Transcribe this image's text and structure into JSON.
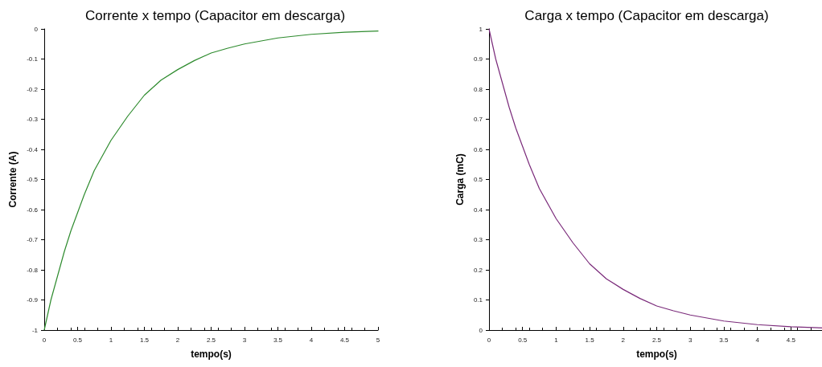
{
  "chart_data": [
    {
      "type": "line",
      "title": "Corrente x tempo (Capacitor em descarga)",
      "xlabel": "tempo(s)",
      "ylabel": "Corrente (A)",
      "x": [
        0,
        0.05,
        0.1,
        0.2,
        0.3,
        0.4,
        0.5,
        0.6,
        0.75,
        0.9,
        1,
        1.25,
        1.5,
        1.75,
        2,
        2.25,
        2.5,
        2.75,
        3,
        3.5,
        4,
        4.5,
        5
      ],
      "series": [
        {
          "color": "#2e8b2e",
          "values": [
            -1,
            -0.95,
            -0.9,
            -0.82,
            -0.74,
            -0.67,
            -0.61,
            -0.55,
            -0.47,
            -0.41,
            -0.37,
            -0.29,
            -0.22,
            -0.17,
            -0.135,
            -0.105,
            -0.08,
            -0.064,
            -0.05,
            -0.03,
            -0.018,
            -0.011,
            -0.007
          ]
        }
      ],
      "xlim": [
        0,
        5
      ],
      "xticks": [
        0,
        0.5,
        1,
        1.5,
        2,
        2.5,
        3,
        3.5,
        4,
        4.5,
        5
      ],
      "ylim": [
        -1,
        0
      ],
      "yticks": [
        -1,
        -0.9,
        -0.8,
        -0.7,
        -0.6,
        -0.5,
        -0.4,
        -0.3,
        -0.2,
        -0.1,
        0
      ],
      "marker": "none",
      "line_style": "solid"
    },
    {
      "type": "line",
      "title": "Carga x tempo (Capacitor em descarga)",
      "xlabel": "tempo(s)",
      "ylabel": "Carga (mC)",
      "x": [
        0,
        0.05,
        0.1,
        0.2,
        0.3,
        0.4,
        0.5,
        0.6,
        0.75,
        0.9,
        1,
        1.25,
        1.5,
        1.75,
        2,
        2.25,
        2.5,
        2.75,
        3,
        3.5,
        4,
        4.5,
        5
      ],
      "series": [
        {
          "color": "#7a2a7a",
          "values": [
            1,
            0.95,
            0.9,
            0.82,
            0.74,
            0.67,
            0.61,
            0.55,
            0.47,
            0.41,
            0.37,
            0.29,
            0.22,
            0.17,
            0.135,
            0.105,
            0.08,
            0.064,
            0.05,
            0.03,
            0.018,
            0.011,
            0.007
          ]
        }
      ],
      "xlim": [
        0,
        5
      ],
      "xticks": [
        0,
        0.5,
        1,
        1.5,
        2,
        2.5,
        3,
        3.5,
        4,
        4.5
      ],
      "ylim": [
        0,
        1
      ],
      "yticks": [
        0,
        0.1,
        0.2,
        0.3,
        0.4,
        0.5,
        0.6,
        0.7,
        0.8,
        0.9,
        1
      ],
      "marker": "none",
      "line_style": "solid"
    }
  ]
}
